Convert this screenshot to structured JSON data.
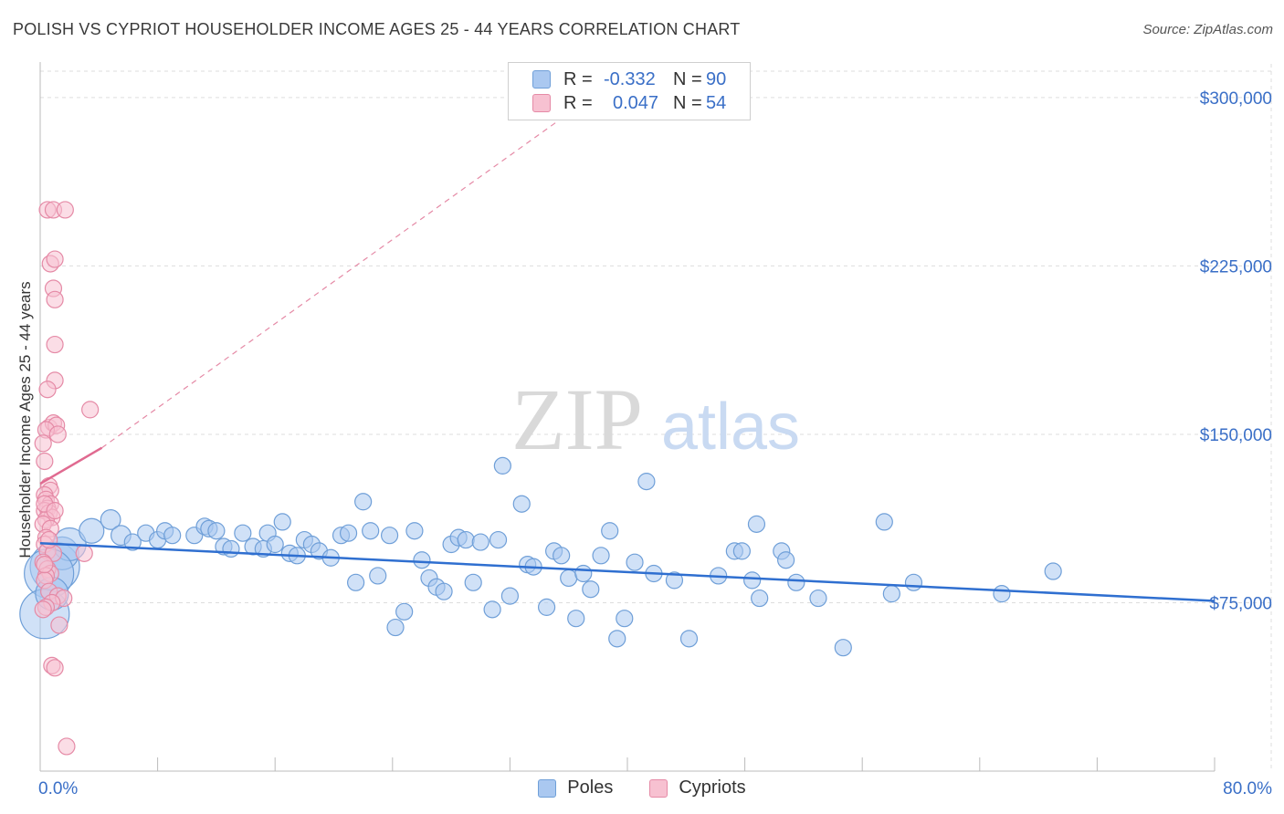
{
  "title": "POLISH VS CYPRIOT HOUSEHOLDER INCOME AGES 25 - 44 YEARS CORRELATION CHART",
  "source": "Source: ZipAtlas.com",
  "watermark": {
    "zip": "ZIP",
    "atlas": "atlas"
  },
  "legend_top": [
    {
      "r_label": "R =",
      "r_value": "-0.332",
      "n_label": "N =",
      "n_value": "90",
      "color": "#aac8f0",
      "border": "#6f9fd8"
    },
    {
      "r_label": "R =",
      "r_value": "0.047",
      "n_label": "N =",
      "n_value": "54",
      "color": "#f7c1d1",
      "border": "#e58aa6"
    }
  ],
  "legend_bottom": [
    {
      "label": "Poles",
      "color": "#aac8f0",
      "border": "#6f9fd8"
    },
    {
      "label": "Cypriots",
      "color": "#f7c1d1",
      "border": "#e58aa6"
    }
  ],
  "chart_data": {
    "type": "scatter",
    "title": "POLISH VS CYPRIOT HOUSEHOLDER INCOME AGES 25 - 44 YEARS CORRELATION CHART",
    "xlabel": "",
    "ylabel": "Householder Income Ages 25 - 44 years",
    "xlim": [
      0,
      80
    ],
    "ylim": [
      0,
      315000
    ],
    "x_tick_labels": [
      "0.0%",
      "80.0%"
    ],
    "y_ticks": [
      75000,
      150000,
      225000,
      300000
    ],
    "y_tick_labels": [
      "$75,000",
      "$150,000",
      "$225,000",
      "$300,000"
    ],
    "grid": true,
    "legend_placement": "bottom",
    "series": [
      {
        "name": "Poles",
        "color": "#6f9fd8",
        "fill": "#aac8f0",
        "trend": {
          "x": [
            0,
            80
          ],
          "y": [
            101500,
            75800
          ],
          "color": "#2f6fd0"
        },
        "points": [
          {
            "x": 1.0,
            "y": 91000,
            "s": 3
          },
          {
            "x": 1.5,
            "y": 97000,
            "s": 2
          },
          {
            "x": 2.0,
            "y": 101000,
            "s": 2
          },
          {
            "x": 0.6,
            "y": 88000,
            "s": 3
          },
          {
            "x": 0.3,
            "y": 70000,
            "s": 3
          },
          {
            "x": 0.8,
            "y": 79000,
            "s": 2
          },
          {
            "x": 3.5,
            "y": 107000,
            "s": 1.5
          },
          {
            "x": 4.8,
            "y": 112000,
            "s": 1.2
          },
          {
            "x": 5.5,
            "y": 105000,
            "s": 1.2
          },
          {
            "x": 6.3,
            "y": 102000,
            "s": 1
          },
          {
            "x": 7.2,
            "y": 106000,
            "s": 1
          },
          {
            "x": 8.0,
            "y": 103000,
            "s": 1
          },
          {
            "x": 8.5,
            "y": 107000,
            "s": 1
          },
          {
            "x": 9.0,
            "y": 105000,
            "s": 1
          },
          {
            "x": 10.5,
            "y": 105000,
            "s": 1
          },
          {
            "x": 11.2,
            "y": 109000,
            "s": 1
          },
          {
            "x": 11.5,
            "y": 108000,
            "s": 1
          },
          {
            "x": 12.0,
            "y": 107000,
            "s": 1
          },
          {
            "x": 12.5,
            "y": 100000,
            "s": 1
          },
          {
            "x": 13.0,
            "y": 99000,
            "s": 1
          },
          {
            "x": 13.8,
            "y": 106000,
            "s": 1
          },
          {
            "x": 14.5,
            "y": 100000,
            "s": 1
          },
          {
            "x": 15.2,
            "y": 99000,
            "s": 1
          },
          {
            "x": 15.5,
            "y": 106000,
            "s": 1
          },
          {
            "x": 16.0,
            "y": 101000,
            "s": 1
          },
          {
            "x": 16.5,
            "y": 111000,
            "s": 1
          },
          {
            "x": 17.0,
            "y": 97000,
            "s": 1
          },
          {
            "x": 17.5,
            "y": 96000,
            "s": 1
          },
          {
            "x": 18.0,
            "y": 103000,
            "s": 1
          },
          {
            "x": 18.5,
            "y": 101000,
            "s": 1
          },
          {
            "x": 19.0,
            "y": 98000,
            "s": 1
          },
          {
            "x": 19.8,
            "y": 95000,
            "s": 1
          },
          {
            "x": 20.5,
            "y": 105000,
            "s": 1
          },
          {
            "x": 21.0,
            "y": 106000,
            "s": 1
          },
          {
            "x": 21.5,
            "y": 84000,
            "s": 1
          },
          {
            "x": 22.0,
            "y": 120000,
            "s": 1
          },
          {
            "x": 22.5,
            "y": 107000,
            "s": 1
          },
          {
            "x": 23.0,
            "y": 87000,
            "s": 1
          },
          {
            "x": 23.8,
            "y": 105000,
            "s": 1
          },
          {
            "x": 24.2,
            "y": 64000,
            "s": 1
          },
          {
            "x": 24.8,
            "y": 71000,
            "s": 1
          },
          {
            "x": 25.5,
            "y": 107000,
            "s": 1
          },
          {
            "x": 26.0,
            "y": 94000,
            "s": 1
          },
          {
            "x": 26.5,
            "y": 86000,
            "s": 1
          },
          {
            "x": 27.0,
            "y": 82000,
            "s": 1
          },
          {
            "x": 27.5,
            "y": 80000,
            "s": 1
          },
          {
            "x": 28.0,
            "y": 101000,
            "s": 1
          },
          {
            "x": 28.5,
            "y": 104000,
            "s": 1
          },
          {
            "x": 29.0,
            "y": 103000,
            "s": 1
          },
          {
            "x": 29.5,
            "y": 84000,
            "s": 1
          },
          {
            "x": 30.0,
            "y": 102000,
            "s": 1
          },
          {
            "x": 30.8,
            "y": 72000,
            "s": 1
          },
          {
            "x": 31.2,
            "y": 103000,
            "s": 1
          },
          {
            "x": 31.5,
            "y": 136000,
            "s": 1
          },
          {
            "x": 32.0,
            "y": 78000,
            "s": 1
          },
          {
            "x": 32.8,
            "y": 119000,
            "s": 1
          },
          {
            "x": 33.2,
            "y": 92000,
            "s": 1
          },
          {
            "x": 33.6,
            "y": 91000,
            "s": 1
          },
          {
            "x": 34.5,
            "y": 73000,
            "s": 1
          },
          {
            "x": 35.0,
            "y": 98000,
            "s": 1
          },
          {
            "x": 35.5,
            "y": 96000,
            "s": 1
          },
          {
            "x": 36.0,
            "y": 86000,
            "s": 1
          },
          {
            "x": 36.5,
            "y": 68000,
            "s": 1
          },
          {
            "x": 37.0,
            "y": 88000,
            "s": 1
          },
          {
            "x": 37.5,
            "y": 81000,
            "s": 1
          },
          {
            "x": 38.2,
            "y": 96000,
            "s": 1
          },
          {
            "x": 38.8,
            "y": 107000,
            "s": 1
          },
          {
            "x": 39.3,
            "y": 59000,
            "s": 1
          },
          {
            "x": 39.8,
            "y": 68000,
            "s": 1
          },
          {
            "x": 40.5,
            "y": 93000,
            "s": 1
          },
          {
            "x": 41.3,
            "y": 129000,
            "s": 1
          },
          {
            "x": 41.8,
            "y": 88000,
            "s": 1
          },
          {
            "x": 43.2,
            "y": 85000,
            "s": 1
          },
          {
            "x": 44.2,
            "y": 59000,
            "s": 1
          },
          {
            "x": 46.2,
            "y": 87000,
            "s": 1
          },
          {
            "x": 47.3,
            "y": 98000,
            "s": 1
          },
          {
            "x": 47.8,
            "y": 98000,
            "s": 1
          },
          {
            "x": 48.5,
            "y": 85000,
            "s": 1
          },
          {
            "x": 48.8,
            "y": 110000,
            "s": 1
          },
          {
            "x": 49.0,
            "y": 77000,
            "s": 1
          },
          {
            "x": 50.5,
            "y": 98000,
            "s": 1
          },
          {
            "x": 50.8,
            "y": 94000,
            "s": 1
          },
          {
            "x": 51.5,
            "y": 84000,
            "s": 1
          },
          {
            "x": 53.0,
            "y": 77000,
            "s": 1
          },
          {
            "x": 54.7,
            "y": 55000,
            "s": 1
          },
          {
            "x": 57.5,
            "y": 111000,
            "s": 1
          },
          {
            "x": 58.0,
            "y": 79000,
            "s": 1
          },
          {
            "x": 59.5,
            "y": 84000,
            "s": 1
          },
          {
            "x": 65.5,
            "y": 79000,
            "s": 1
          },
          {
            "x": 69.0,
            "y": 89000,
            "s": 1
          }
        ]
      },
      {
        "name": "Cypriots",
        "color": "#e58aa6",
        "fill": "#f7c1d1",
        "trend": {
          "x": [
            0,
            4.2
          ],
          "y": [
            128000,
            144000
          ],
          "color": "#e06a90",
          "extended_to": [
            37.5,
            300000
          ]
        },
        "points": [
          {
            "x": 0.5,
            "y": 250000,
            "s": 1
          },
          {
            "x": 0.9,
            "y": 250000,
            "s": 1
          },
          {
            "x": 1.7,
            "y": 250000,
            "s": 1
          },
          {
            "x": 0.7,
            "y": 226000,
            "s": 1
          },
          {
            "x": 1.0,
            "y": 228000,
            "s": 1
          },
          {
            "x": 0.9,
            "y": 215000,
            "s": 1
          },
          {
            "x": 1.0,
            "y": 210000,
            "s": 1
          },
          {
            "x": 1.0,
            "y": 190000,
            "s": 1
          },
          {
            "x": 1.0,
            "y": 174000,
            "s": 1
          },
          {
            "x": 0.5,
            "y": 170000,
            "s": 1
          },
          {
            "x": 3.4,
            "y": 161000,
            "s": 1
          },
          {
            "x": 0.6,
            "y": 153000,
            "s": 1
          },
          {
            "x": 0.9,
            "y": 155000,
            "s": 1
          },
          {
            "x": 1.1,
            "y": 154000,
            "s": 1
          },
          {
            "x": 0.4,
            "y": 152000,
            "s": 1
          },
          {
            "x": 1.2,
            "y": 150000,
            "s": 1
          },
          {
            "x": 0.2,
            "y": 146000,
            "s": 1
          },
          {
            "x": 0.3,
            "y": 138000,
            "s": 1
          },
          {
            "x": 0.6,
            "y": 127000,
            "s": 1
          },
          {
            "x": 0.7,
            "y": 125000,
            "s": 1
          },
          {
            "x": 0.3,
            "y": 123000,
            "s": 1
          },
          {
            "x": 0.4,
            "y": 121000,
            "s": 1
          },
          {
            "x": 0.7,
            "y": 119000,
            "s": 1
          },
          {
            "x": 0.5,
            "y": 117000,
            "s": 1
          },
          {
            "x": 0.3,
            "y": 116000,
            "s": 1
          },
          {
            "x": 0.6,
            "y": 115000,
            "s": 1
          },
          {
            "x": 0.8,
            "y": 113000,
            "s": 1
          },
          {
            "x": 0.4,
            "y": 112000,
            "s": 1
          },
          {
            "x": 0.2,
            "y": 110000,
            "s": 1
          },
          {
            "x": 0.7,
            "y": 108000,
            "s": 1
          },
          {
            "x": 0.4,
            "y": 104000,
            "s": 1
          },
          {
            "x": 0.3,
            "y": 101000,
            "s": 1
          },
          {
            "x": 0.5,
            "y": 98000,
            "s": 1
          },
          {
            "x": 0.9,
            "y": 97000,
            "s": 1
          },
          {
            "x": 3.0,
            "y": 97000,
            "s": 1
          },
          {
            "x": 0.2,
            "y": 93000,
            "s": 1
          },
          {
            "x": 0.5,
            "y": 90000,
            "s": 1
          },
          {
            "x": 0.7,
            "y": 88000,
            "s": 1
          },
          {
            "x": 0.4,
            "y": 87000,
            "s": 1
          },
          {
            "x": 0.3,
            "y": 85000,
            "s": 1
          },
          {
            "x": 0.6,
            "y": 80000,
            "s": 1
          },
          {
            "x": 1.2,
            "y": 78000,
            "s": 1
          },
          {
            "x": 1.6,
            "y": 77000,
            "s": 1
          },
          {
            "x": 0.8,
            "y": 75000,
            "s": 1
          },
          {
            "x": 0.4,
            "y": 73000,
            "s": 1
          },
          {
            "x": 1.3,
            "y": 65000,
            "s": 1
          },
          {
            "x": 0.8,
            "y": 47000,
            "s": 1
          },
          {
            "x": 1.0,
            "y": 46000,
            "s": 1
          },
          {
            "x": 1.8,
            "y": 11000,
            "s": 1
          },
          {
            "x": 0.2,
            "y": 72000,
            "s": 1
          },
          {
            "x": 0.3,
            "y": 92000,
            "s": 1
          },
          {
            "x": 0.6,
            "y": 103000,
            "s": 1
          },
          {
            "x": 0.3,
            "y": 119000,
            "s": 1
          },
          {
            "x": 1.0,
            "y": 116000,
            "s": 1
          }
        ]
      }
    ]
  }
}
